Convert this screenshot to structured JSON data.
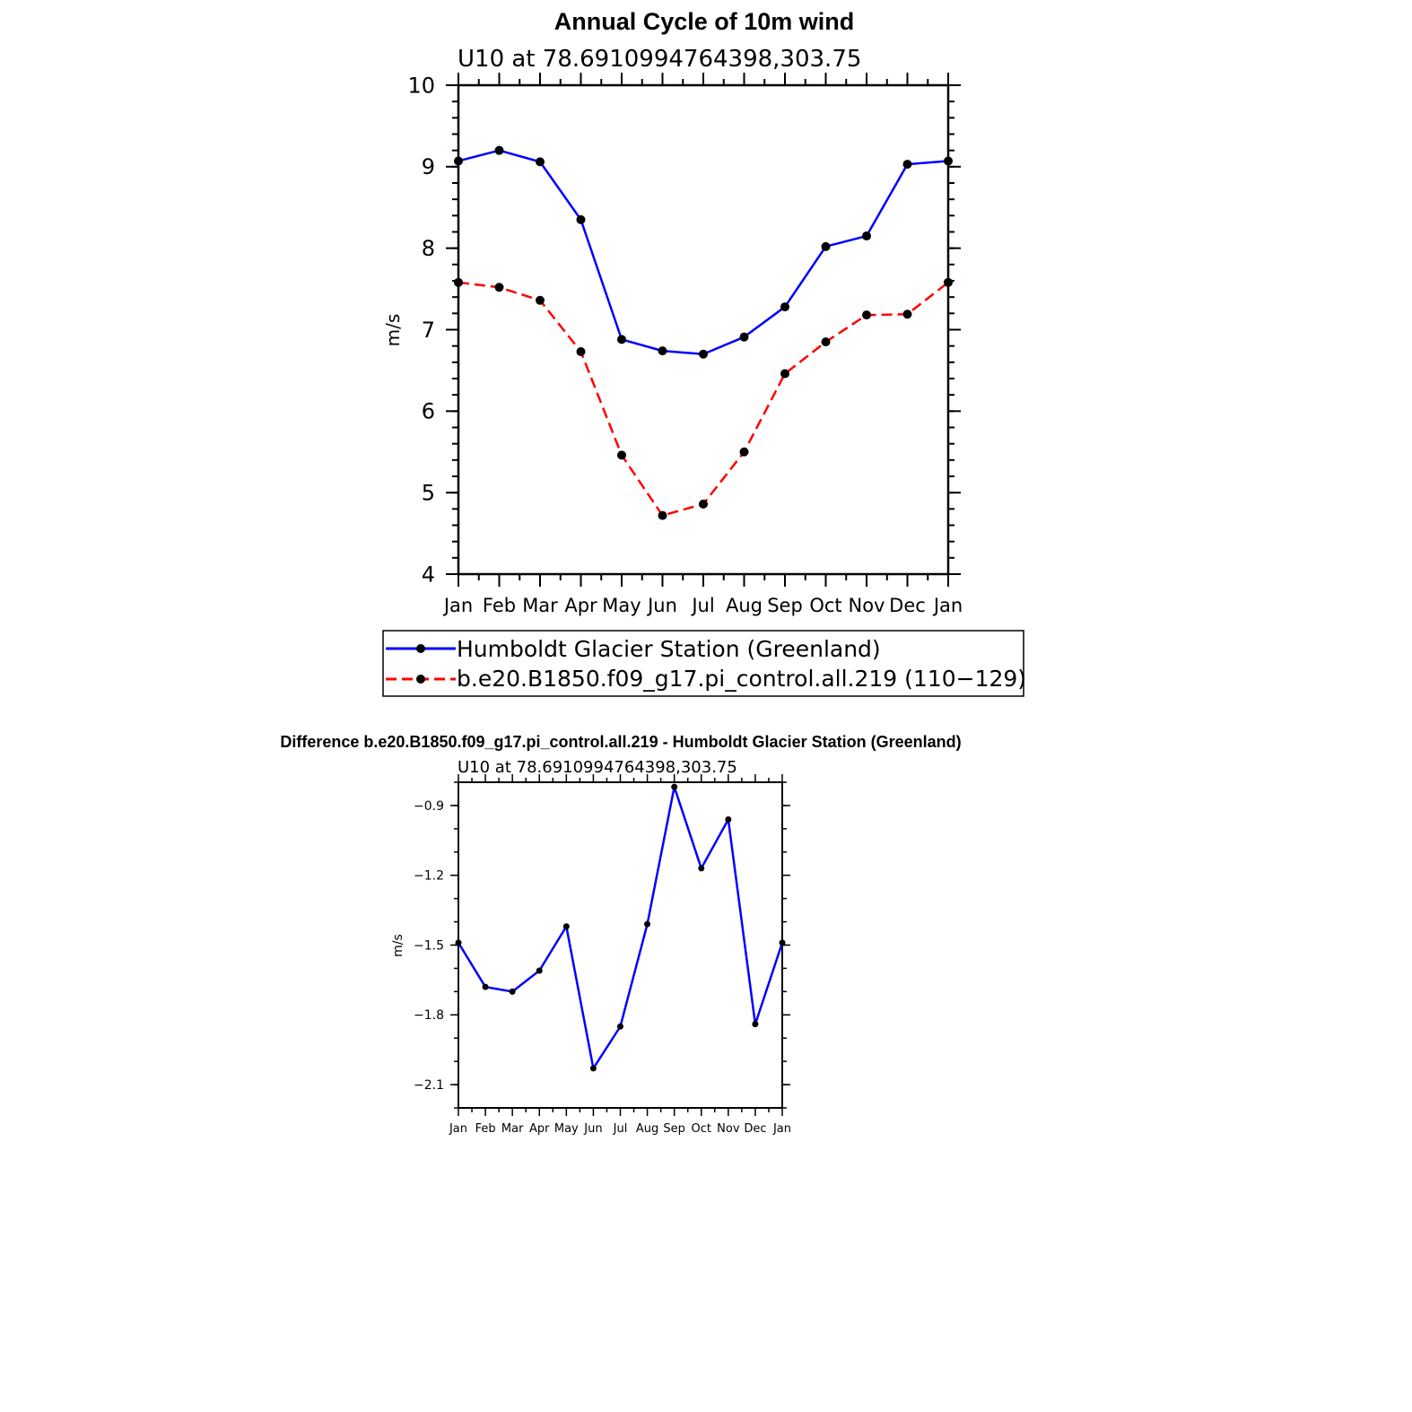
{
  "colors": {
    "series_blue": "#0000ff",
    "series_red": "#ff0000",
    "marker": "#000000",
    "axis": "#000000"
  },
  "chart_data": [
    {
      "type": "line",
      "title": "Annual Cycle of 10m wind",
      "subtitle": "U10 at 78.6910994764398,303.75",
      "xlabel": "",
      "ylabel": "m/s",
      "categories": [
        "Jan",
        "Feb",
        "Mar",
        "Apr",
        "May",
        "Jun",
        "Jul",
        "Aug",
        "Sep",
        "Oct",
        "Nov",
        "Dec",
        "Jan"
      ],
      "ylim": [
        4,
        10
      ],
      "yticks": [
        4,
        5,
        6,
        7,
        8,
        9,
        10
      ],
      "grid": false,
      "legend_position": "bottom",
      "series": [
        {
          "name": "Humboldt Glacier Station (Greenland)",
          "color": "#0000ff",
          "style": "solid",
          "values": [
            9.07,
            9.2,
            9.06,
            8.35,
            6.88,
            6.74,
            6.7,
            6.91,
            7.28,
            8.02,
            8.15,
            9.03,
            9.07
          ]
        },
        {
          "name": "b.e20.B1850.f09_g17.pi_control.all.219 (110−129)",
          "color": "#ff0000",
          "style": "dashed",
          "values": [
            7.58,
            7.52,
            7.36,
            6.73,
            5.46,
            4.72,
            4.86,
            5.5,
            6.46,
            6.85,
            7.18,
            7.19,
            7.58
          ]
        }
      ]
    },
    {
      "type": "line",
      "title": "Difference b.e20.B1850.f09_g17.pi_control.all.219 - Humboldt Glacier Station (Greenland)",
      "subtitle": "U10 at 78.6910994764398,303.75",
      "xlabel": "",
      "ylabel": "m/s",
      "categories": [
        "Jan",
        "Feb",
        "Mar",
        "Apr",
        "May",
        "Jun",
        "Jul",
        "Aug",
        "Sep",
        "Oct",
        "Nov",
        "Dec",
        "Jan"
      ],
      "ylim": [
        -2.2,
        -0.8
      ],
      "yticks": [
        -2.1,
        -1.8,
        -1.5,
        -1.2,
        -0.9
      ],
      "ytick_labels": [
        "−2.1",
        "−1.8",
        "−1.5",
        "−1.2",
        "−0.9"
      ],
      "grid": false,
      "series": [
        {
          "color": "#0000ff",
          "style": "solid",
          "values": [
            -1.49,
            -1.68,
            -1.7,
            -1.61,
            -1.42,
            -2.03,
            -1.85,
            -1.41,
            -0.82,
            -1.17,
            -0.96,
            -1.84,
            -1.49
          ]
        }
      ]
    }
  ]
}
